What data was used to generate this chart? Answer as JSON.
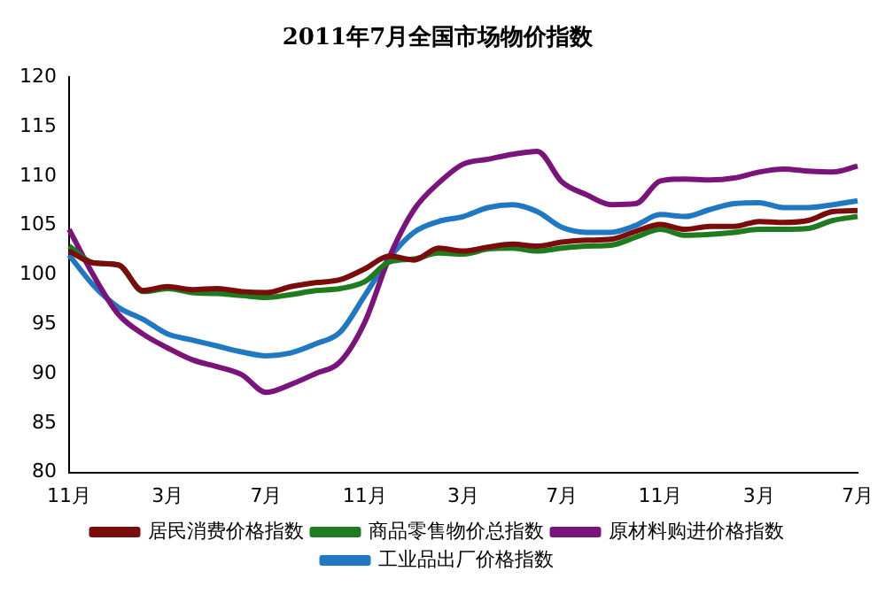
{
  "chart_data": {
    "type": "line",
    "title": "2011年7月全国市场物价指数",
    "categories": [
      "11月",
      null,
      null,
      null,
      "3月",
      null,
      null,
      null,
      "7月",
      null,
      null,
      null,
      "11月",
      null,
      null,
      null,
      "3月",
      null,
      null,
      null,
      "7月",
      null,
      null,
      null,
      "11月",
      null,
      null,
      null,
      "3月",
      null,
      null,
      null,
      "7月"
    ],
    "series": [
      {
        "name": "居民消费价格指数",
        "color": "#7b0c0c",
        "values": [
          102.4,
          101.2,
          101.0,
          98.4,
          98.8,
          98.5,
          98.6,
          98.3,
          98.2,
          98.8,
          99.2,
          99.5,
          100.6,
          101.9,
          101.5,
          102.7,
          102.4,
          102.8,
          103.1,
          102.9,
          103.3,
          103.5,
          103.6,
          104.4,
          105.1,
          104.6,
          104.9,
          104.9,
          105.4,
          105.3,
          105.5,
          106.4,
          106.5
        ]
      },
      {
        "name": "商品零售物价总指数",
        "color": "#1e7b1e",
        "values": [
          102.9,
          101.2,
          101.0,
          98.3,
          98.6,
          98.2,
          98.1,
          97.9,
          97.7,
          98.0,
          98.4,
          98.6,
          99.3,
          101.3,
          101.6,
          102.2,
          102.1,
          102.6,
          102.7,
          102.4,
          102.7,
          102.9,
          103.0,
          103.8,
          104.6,
          104.0,
          104.1,
          104.3,
          104.6,
          104.6,
          104.7,
          105.5,
          105.9
        ]
      },
      {
        "name": "原材料购进价格指数",
        "color": "#7a147a",
        "values": [
          104.6,
          99.9,
          96.0,
          94.0,
          92.6,
          91.4,
          90.7,
          89.9,
          88.1,
          88.9,
          90.0,
          91.2,
          95.2,
          101.8,
          106.6,
          109.3,
          111.2,
          111.7,
          112.2,
          112.5,
          109.4,
          108.1,
          107.1,
          107.2,
          109.5,
          109.7,
          109.6,
          109.8,
          110.4,
          110.7,
          110.5,
          110.4,
          111.0
        ]
      },
      {
        "name": "工业品出厂价格指数",
        "color": "#1f78c1",
        "values": [
          102.0,
          98.9,
          96.7,
          95.5,
          94.0,
          93.4,
          92.8,
          92.2,
          91.8,
          92.1,
          93.0,
          94.2,
          97.9,
          101.7,
          104.3,
          105.4,
          105.9,
          106.8,
          107.1,
          106.4,
          104.8,
          104.3,
          104.3,
          105.0,
          106.1,
          105.9,
          106.6,
          107.2,
          107.3,
          106.8,
          106.8,
          107.1,
          107.5
        ]
      }
    ],
    "ylim": [
      80,
      120
    ],
    "yticks": [
      80,
      85,
      90,
      95,
      100,
      105,
      110,
      115,
      120
    ],
    "grid": false,
    "legend": "bottom",
    "marker": "none",
    "line_style": "solid"
  }
}
